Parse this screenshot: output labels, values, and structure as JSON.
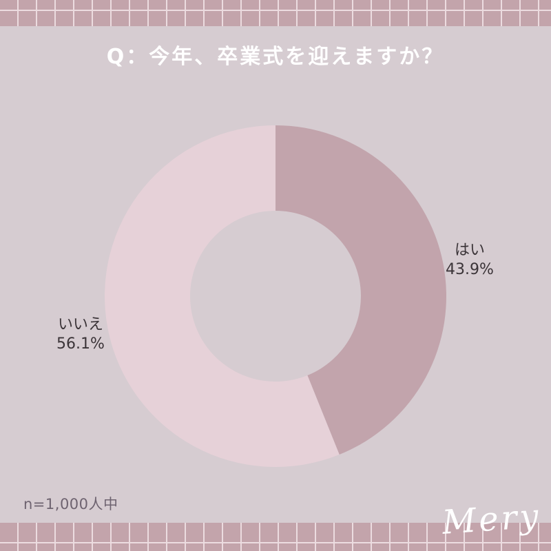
{
  "page": {
    "title": "Q：今年、卒業式を迎えますか？",
    "sample_note": "n=1,000人中",
    "brand": "Mery"
  },
  "colors": {
    "background": "#d6ccd1",
    "border_cell": "#c3a4ab",
    "border_line": "#ecdce0",
    "title_text": "#ffffff",
    "label_text": "#3b3438",
    "note_text": "#6e6370",
    "brand_text": "#ffffff",
    "slice_yes": "#c2a4ac",
    "slice_no": "#e6d1d8"
  },
  "chart_data": {
    "type": "pie",
    "subtype": "donut",
    "title": "Q：今年、卒業式を迎えますか？",
    "categories": [
      "はい",
      "いいえ"
    ],
    "values": [
      43.9,
      56.1
    ],
    "unit": "%",
    "slice_keys": [
      "yes",
      "no"
    ],
    "slice_colors": [
      "#c2a4ac",
      "#e6d1d8"
    ],
    "start_angle_deg": 0,
    "direction": "clockwise",
    "inner_radius_ratio": 0.5,
    "legend_position": "outside-labels",
    "labels": [
      {
        "key": "yes",
        "name": "はい",
        "value_label": "43.9%"
      },
      {
        "key": "no",
        "name": "いいえ",
        "value_label": "56.1%"
      }
    ],
    "sample_note": "n=1,000人中"
  }
}
